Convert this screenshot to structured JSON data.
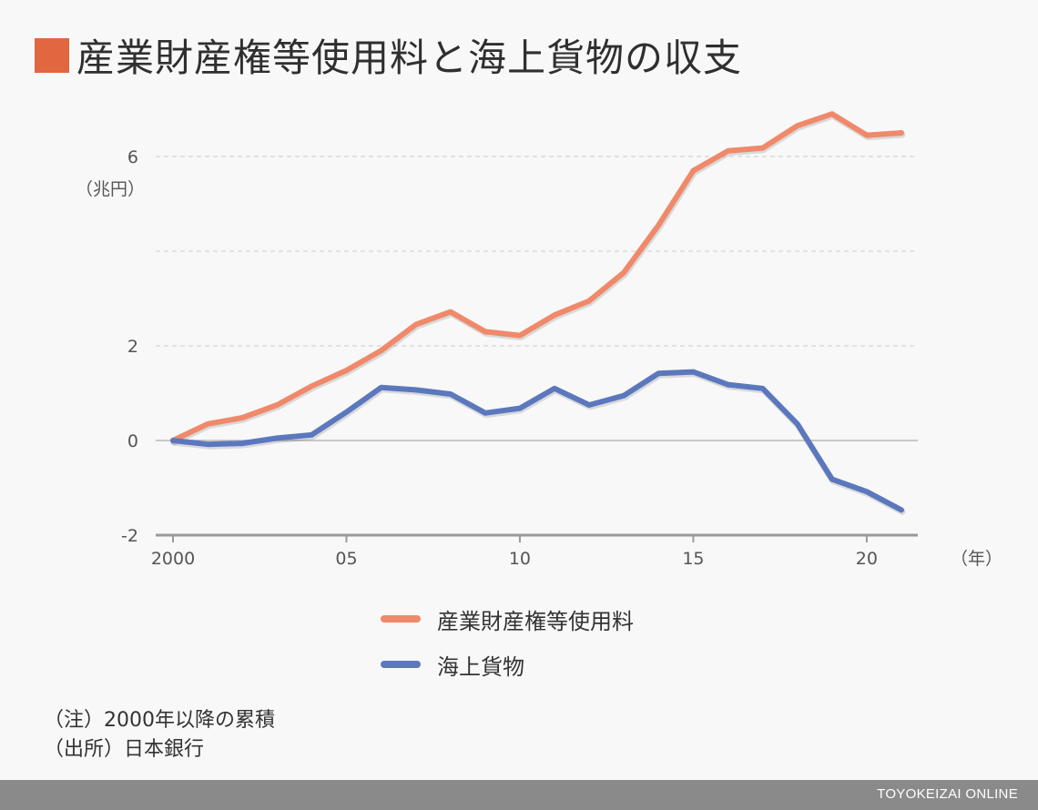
{
  "title": "産業財産権等使用料と海上貨物の収支",
  "notes": {
    "note": "（注）2000年以降の累積",
    "source": "（出所）日本銀行"
  },
  "footer": {
    "brand": "TOYOKEIZAI ONLINE"
  },
  "colors": {
    "accent": "#e0673f",
    "royalty": "#f0896a",
    "freight": "#5b78be"
  },
  "chart_data": {
    "type": "line",
    "title": "産業財産権等使用料と海上貨物の収支",
    "ylabel": "（兆円）",
    "xlabel": "（年）",
    "ylim": [
      -2,
      6
    ],
    "y_ticks": [
      -2,
      0,
      2,
      4,
      6
    ],
    "y_tick_labels": [
      "-2",
      "0",
      "2",
      "",
      "6"
    ],
    "x_ticks": [
      2000,
      2005,
      2010,
      2015,
      2020
    ],
    "x_tick_labels": [
      "2000",
      "05",
      "10",
      "15",
      "20"
    ],
    "grid": true,
    "legend_position": "bottom-center",
    "x": [
      2000,
      2001,
      2002,
      2003,
      2004,
      2005,
      2006,
      2007,
      2008,
      2009,
      2010,
      2011,
      2012,
      2013,
      2014,
      2015,
      2016,
      2017,
      2018,
      2019,
      2020,
      2021
    ],
    "series": [
      {
        "name": "産業財産権等使用料",
        "color": "#f0896a",
        "values": [
          0,
          0.35,
          0.48,
          0.75,
          1.15,
          1.48,
          1.9,
          2.45,
          2.72,
          2.3,
          2.22,
          2.65,
          2.95,
          3.55,
          4.55,
          5.7,
          6.12,
          6.18,
          6.65,
          6.9,
          6.45,
          6.5
        ]
      },
      {
        "name": "海上貨物",
        "color": "#5b78be",
        "values": [
          0,
          -0.08,
          -0.06,
          0.05,
          0.12,
          0.6,
          1.12,
          1.07,
          0.98,
          0.58,
          0.68,
          1.1,
          0.75,
          0.95,
          1.42,
          1.45,
          1.18,
          1.1,
          0.35,
          -0.82,
          -1.08,
          -1.47
        ]
      }
    ]
  }
}
